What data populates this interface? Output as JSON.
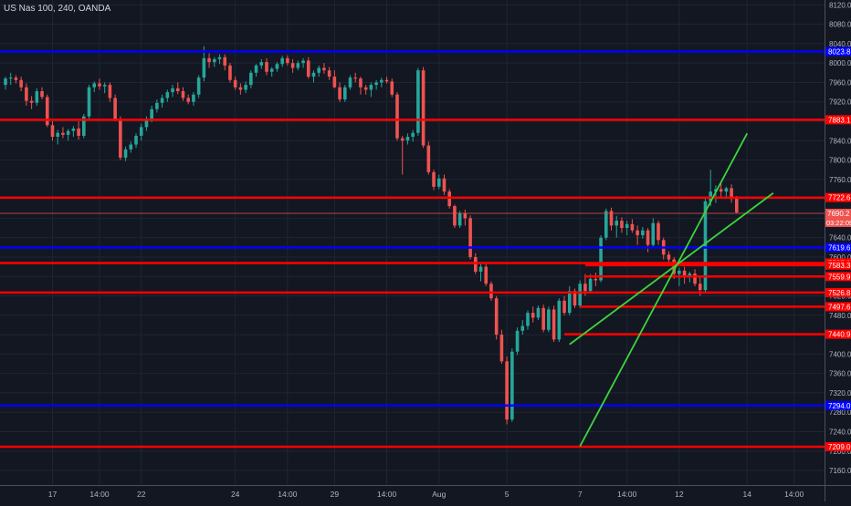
{
  "chart_data": {
    "type": "candlestick",
    "title": "US Nas 100, 240, OANDA",
    "ylim": [
      7130,
      8130
    ],
    "y_ticks": [
      7160,
      7200,
      7240,
      7280,
      7320,
      7360,
      7400,
      7440,
      7480,
      7520,
      7560,
      7600,
      7640,
      7680,
      7720,
      7760,
      7800,
      7840,
      7880,
      7920,
      7960,
      8000,
      8040,
      8080,
      8120
    ],
    "x_ticks": [
      {
        "label": "17",
        "bar": 9
      },
      {
        "label": "14:00",
        "bar": 18
      },
      {
        "label": "22",
        "bar": 26
      },
      {
        "label": "24",
        "bar": 44
      },
      {
        "label": "14:00",
        "bar": 54
      },
      {
        "label": "29",
        "bar": 63
      },
      {
        "label": "14:00",
        "bar": 73
      },
      {
        "label": "Aug",
        "bar": 83
      },
      {
        "label": "5",
        "bar": 96
      },
      {
        "label": "7",
        "bar": 110
      },
      {
        "label": "14:00",
        "bar": 119
      },
      {
        "label": "12",
        "bar": 129
      },
      {
        "label": "14",
        "bar": 142
      },
      {
        "label": "14:00",
        "bar": 151
      }
    ],
    "candles": [
      [
        7955,
        7972,
        7945,
        7968
      ],
      [
        7968,
        7980,
        7955,
        7970
      ],
      [
        7970,
        7975,
        7958,
        7965
      ],
      [
        7965,
        7972,
        7942,
        7950
      ],
      [
        7950,
        7958,
        7912,
        7922
      ],
      [
        7922,
        7932,
        7905,
        7918
      ],
      [
        7918,
        7948,
        7912,
        7942
      ],
      [
        7942,
        7950,
        7925,
        7930
      ],
      [
        7930,
        7935,
        7868,
        7872
      ],
      [
        7872,
        7880,
        7840,
        7848
      ],
      [
        7848,
        7862,
        7832,
        7856
      ],
      [
        7856,
        7868,
        7845,
        7852
      ],
      [
        7852,
        7864,
        7840,
        7860
      ],
      [
        7860,
        7870,
        7848,
        7865
      ],
      [
        7865,
        7880,
        7842,
        7850
      ],
      [
        7850,
        7895,
        7845,
        7890
      ],
      [
        7890,
        7955,
        7885,
        7950
      ],
      [
        7950,
        7962,
        7940,
        7958
      ],
      [
        7958,
        7968,
        7945,
        7952
      ],
      [
        7952,
        7960,
        7938,
        7955
      ],
      [
        7955,
        7960,
        7920,
        7928
      ],
      [
        7928,
        7935,
        7880,
        7885
      ],
      [
        7885,
        7890,
        7800,
        7805
      ],
      [
        7805,
        7828,
        7798,
        7822
      ],
      [
        7822,
        7838,
        7815,
        7832
      ],
      [
        7832,
        7855,
        7825,
        7850
      ],
      [
        7850,
        7875,
        7840,
        7868
      ],
      [
        7868,
        7890,
        7860,
        7885
      ],
      [
        7885,
        7912,
        7878,
        7905
      ],
      [
        7905,
        7925,
        7898,
        7918
      ],
      [
        7918,
        7935,
        7908,
        7928
      ],
      [
        7928,
        7945,
        7920,
        7940
      ],
      [
        7940,
        7955,
        7930,
        7948
      ],
      [
        7948,
        7960,
        7936,
        7942
      ],
      [
        7942,
        7950,
        7922,
        7928
      ],
      [
        7928,
        7935,
        7915,
        7920
      ],
      [
        7920,
        7940,
        7912,
        7935
      ],
      [
        7935,
        7975,
        7928,
        7970
      ],
      [
        7970,
        8035,
        7962,
        8010
      ],
      [
        8010,
        8020,
        7990,
        8002
      ],
      [
        8002,
        8012,
        7992,
        8008
      ],
      [
        8008,
        8018,
        7998,
        8012
      ],
      [
        8012,
        8018,
        7985,
        7995
      ],
      [
        7995,
        8000,
        7960,
        7965
      ],
      [
        7965,
        7972,
        7945,
        7950
      ],
      [
        7950,
        7958,
        7935,
        7945
      ],
      [
        7945,
        7962,
        7938,
        7955
      ],
      [
        7955,
        7985,
        7948,
        7980
      ],
      [
        7980,
        7998,
        7972,
        7995
      ],
      [
        7995,
        8008,
        7988,
        8002
      ],
      [
        8002,
        8010,
        7975,
        7982
      ],
      [
        7982,
        7992,
        7972,
        7988
      ],
      [
        7988,
        8002,
        7982,
        7998
      ],
      [
        7998,
        8015,
        7992,
        8010
      ],
      [
        8010,
        8016,
        7995,
        8000
      ],
      [
        8000,
        8008,
        7980,
        7990
      ],
      [
        7990,
        8005,
        7985,
        8000
      ],
      [
        8000,
        8010,
        7990,
        8005
      ],
      [
        8005,
        8012,
        7968,
        7972
      ],
      [
        7972,
        7985,
        7960,
        7980
      ],
      [
        7980,
        7995,
        7972,
        7990
      ],
      [
        7990,
        8000,
        7978,
        7985
      ],
      [
        7985,
        7992,
        7965,
        7972
      ],
      [
        7972,
        7985,
        7948,
        7950
      ],
      [
        7950,
        7960,
        7920,
        7925
      ],
      [
        7925,
        7955,
        7920,
        7950
      ],
      [
        7950,
        7975,
        7945,
        7970
      ],
      [
        7970,
        7980,
        7960,
        7968
      ],
      [
        7968,
        7972,
        7935,
        7950
      ],
      [
        7950,
        7955,
        7935,
        7945
      ],
      [
        7945,
        7960,
        7930,
        7955
      ],
      [
        7955,
        7965,
        7945,
        7960
      ],
      [
        7960,
        7970,
        7950,
        7965
      ],
      [
        7965,
        7972,
        7958,
        7962
      ],
      [
        7962,
        7968,
        7930,
        7935
      ],
      [
        7935,
        7940,
        7840,
        7845
      ],
      [
        7845,
        7850,
        7770,
        7840
      ],
      [
        7840,
        7855,
        7832,
        7848
      ],
      [
        7848,
        7862,
        7838,
        7856
      ],
      [
        7856,
        7990,
        7850,
        7985
      ],
      [
        7985,
        7992,
        7825,
        7830
      ],
      [
        7830,
        7838,
        7770,
        7775
      ],
      [
        7775,
        7780,
        7738,
        7745
      ],
      [
        7745,
        7770,
        7740,
        7762
      ],
      [
        7762,
        7770,
        7728,
        7735
      ],
      [
        7735,
        7740,
        7700,
        7705
      ],
      [
        7705,
        7708,
        7660,
        7665
      ],
      [
        7665,
        7695,
        7660,
        7690
      ],
      [
        7690,
        7698,
        7665,
        7680
      ],
      [
        7680,
        7686,
        7595,
        7600
      ],
      [
        7600,
        7608,
        7565,
        7570
      ],
      [
        7570,
        7585,
        7550,
        7580
      ],
      [
        7580,
        7585,
        7540,
        7545
      ],
      [
        7545,
        7550,
        7510,
        7515
      ],
      [
        7515,
        7520,
        7430,
        7440
      ],
      [
        7440,
        7450,
        7380,
        7385
      ],
      [
        7385,
        7395,
        7255,
        7265
      ],
      [
        7265,
        7412,
        7260,
        7405
      ],
      [
        7405,
        7455,
        7398,
        7448
      ],
      [
        7448,
        7470,
        7440,
        7458
      ],
      [
        7458,
        7490,
        7450,
        7485
      ],
      [
        7485,
        7498,
        7465,
        7475
      ],
      [
        7475,
        7500,
        7470,
        7495
      ],
      [
        7495,
        7502,
        7445,
        7450
      ],
      [
        7450,
        7498,
        7445,
        7492
      ],
      [
        7492,
        7500,
        7425,
        7430
      ],
      [
        7430,
        7515,
        7425,
        7510
      ],
      [
        7510,
        7520,
        7480,
        7485
      ],
      [
        7485,
        7540,
        7480,
        7530
      ],
      [
        7530,
        7535,
        7495,
        7500
      ],
      [
        7500,
        7552,
        7495,
        7545
      ],
      [
        7545,
        7565,
        7520,
        7530
      ],
      [
        7530,
        7565,
        7525,
        7555
      ],
      [
        7555,
        7568,
        7540,
        7552
      ],
      [
        7552,
        7645,
        7548,
        7640
      ],
      [
        7640,
        7700,
        7635,
        7695
      ],
      [
        7695,
        7702,
        7655,
        7665
      ],
      [
        7665,
        7685,
        7640,
        7675
      ],
      [
        7675,
        7682,
        7650,
        7660
      ],
      [
        7660,
        7675,
        7645,
        7668
      ],
      [
        7668,
        7678,
        7650,
        7655
      ],
      [
        7655,
        7665,
        7625,
        7645
      ],
      [
        7645,
        7662,
        7638,
        7655
      ],
      [
        7655,
        7660,
        7610,
        7625
      ],
      [
        7625,
        7680,
        7618,
        7670
      ],
      [
        7670,
        7675,
        7625,
        7635
      ],
      [
        7635,
        7640,
        7595,
        7605
      ],
      [
        7605,
        7612,
        7585,
        7595
      ],
      [
        7595,
        7600,
        7555,
        7565
      ],
      [
        7565,
        7578,
        7540,
        7572
      ],
      [
        7572,
        7580,
        7545,
        7558
      ],
      [
        7558,
        7570,
        7548,
        7566
      ],
      [
        7566,
        7575,
        7540,
        7545
      ],
      [
        7545,
        7560,
        7520,
        7532
      ],
      [
        7532,
        7725,
        7528,
        7715
      ],
      [
        7715,
        7780,
        7705,
        7735
      ],
      [
        7735,
        7748,
        7712,
        7740
      ],
      [
        7740,
        7752,
        7722,
        7735
      ],
      [
        7735,
        7745,
        7722,
        7742
      ],
      [
        7742,
        7750,
        7712,
        7720
      ],
      [
        7720,
        7726,
        7690,
        7692
      ]
    ],
    "levels": [
      {
        "value": 8023.8,
        "label": "8023.8",
        "color": "#0000ff"
      },
      {
        "value": 7883.1,
        "label": "7883.1",
        "color": "#ff0000"
      },
      {
        "value": 7722.6,
        "label": "7722.6",
        "color": "#ff0000"
      },
      {
        "value": 7619.6,
        "label": "7619.6",
        "color": "#0000ff"
      },
      {
        "value": 7587.8,
        "label": "7587.8",
        "color": "#ff0000"
      },
      {
        "value": 7583.3,
        "label": "7583.3",
        "color": "#ff0000",
        "from_bar": 111
      },
      {
        "value": 7559.9,
        "label": "7559.9",
        "color": "#ff0000",
        "from_bar": 111
      },
      {
        "value": 7526.8,
        "label": "7526.8",
        "color": "#ff0000"
      },
      {
        "value": 7497.6,
        "label": "7497.6",
        "color": "#ff0000",
        "from_bar": 110
      },
      {
        "value": 7440.9,
        "label": "7440.9",
        "color": "#ff0000",
        "from_bar": 107
      },
      {
        "value": 7294.0,
        "label": "7294.0",
        "color": "#0000ff"
      },
      {
        "value": 7209.0,
        "label": "7209.0",
        "color": "#ff0000"
      }
    ],
    "price_tag": {
      "value": 7690.2,
      "label": "7690.2",
      "countdown": "03:22:09"
    },
    "channel_lines": [
      {
        "from": [
          110,
          7210
        ],
        "to": [
          142,
          7855
        ]
      },
      {
        "from": [
          108,
          7420
        ],
        "to": [
          147,
          7732
        ]
      }
    ],
    "colors": {
      "up": "#26a69a",
      "down": "#ef5350",
      "channel": "#3cd63c",
      "background": "#131722"
    }
  }
}
